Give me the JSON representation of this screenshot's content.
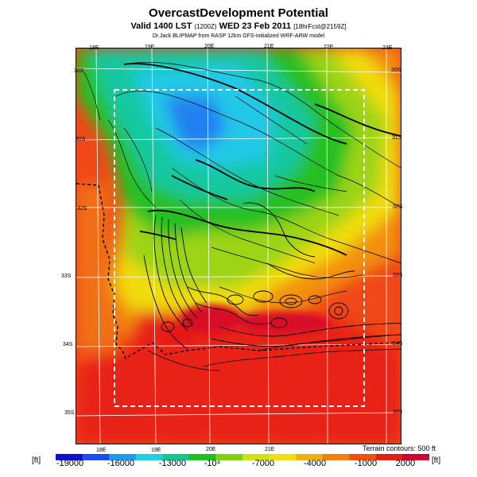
{
  "header": {
    "title": "OvercastDevelopment Potential",
    "valid_prefix": "Valid 1400 LST",
    "valid_code": "(1200Z)",
    "valid_date": "WED 23 Feb 2011",
    "forecast_tag": "[18hrFcst@2159Z]",
    "credit": "Dr.Jack BLIPMAP from RASP 12km GFS-initialized WRF-ARW model"
  },
  "map": {
    "lon_labels_top": [
      "18E",
      "19E",
      "20E",
      "21E",
      "22E",
      "23E"
    ],
    "lon_labels_bottom": [
      "18E",
      "19E",
      "20E",
      "21E"
    ],
    "lat_labels_right": [
      "30S",
      "31S",
      "32S",
      "33S",
      "34S",
      "35S"
    ],
    "lat_labels_left": [
      "30S",
      "31S",
      "32S",
      "33S",
      "34S",
      "35S"
    ],
    "terrain_note": "Terrain contours: 500 ft"
  },
  "colorbar": {
    "unit_left": "[ft]",
    "unit_right": "[ft]",
    "tick_labels": [
      "-19000",
      "-16000",
      "-13000",
      "-10⁴",
      "-7000",
      "-4000",
      "-1000",
      "2000"
    ],
    "colors": [
      "#1010d0",
      "#1a4cf0",
      "#1c9cf0",
      "#20d0e0",
      "#10c890",
      "#20c020",
      "#80d010",
      "#d0e010",
      "#f0e010",
      "#f0b010",
      "#f08010",
      "#f05010",
      "#e02010",
      "#d00030"
    ]
  }
}
